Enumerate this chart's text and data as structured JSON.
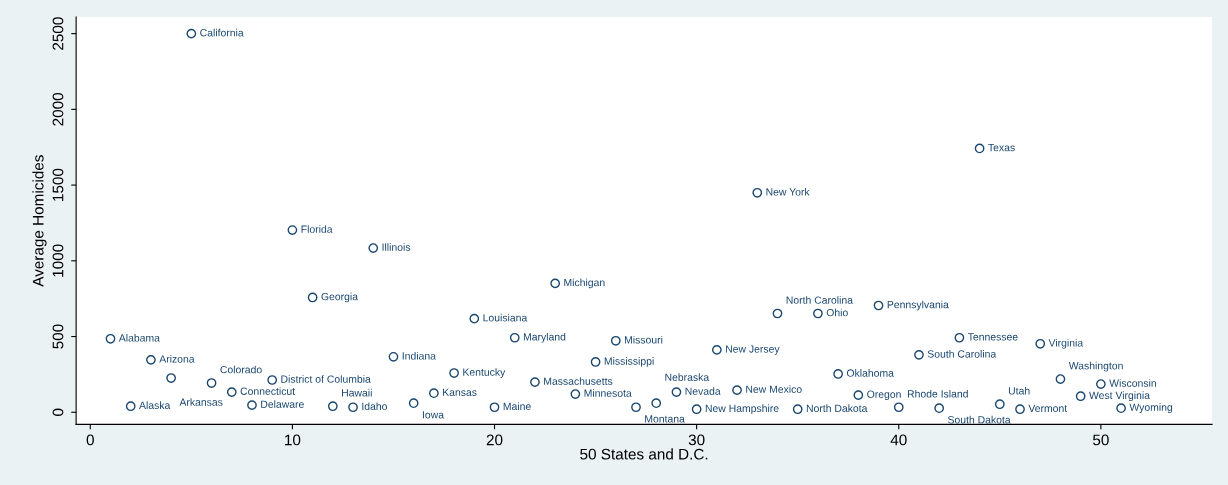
{
  "chart_data": {
    "type": "scatter",
    "xlabel": "50 States and D.C.",
    "ylabel": "Average Homicides",
    "x": [
      1,
      2,
      3,
      4,
      5,
      6,
      7,
      8,
      9,
      10,
      11,
      12,
      13,
      14,
      15,
      16,
      17,
      18,
      19,
      20,
      21,
      22,
      23,
      24,
      25,
      26,
      27,
      28,
      29,
      30,
      31,
      32,
      33,
      34,
      35,
      36,
      37,
      38,
      39,
      40,
      41,
      42,
      43,
      44,
      45,
      46,
      47,
      48,
      49,
      50,
      51
    ],
    "series": [
      {
        "color": "#1a476f",
        "values": [
          485,
          40,
          346,
          226,
          2500,
          193,
          133,
          47,
          213,
          1203,
          758,
          40,
          33,
          1084,
          366,
          60,
          126,
          259,
          618,
          33,
          492,
          199,
          851,
          120,
          332,
          472,
          33,
          60,
          133,
          20,
          412,
          146,
          1449,
          652,
          20,
          652,
          253,
          113,
          705,
          33,
          379,
          27,
          492,
          1742,
          53,
          20,
          452,
          219,
          106,
          186,
          27
        ]
      }
    ],
    "marker": "circle",
    "xlim": [
      -0.7,
      55.5
    ],
    "ylim": [
      -80,
      2610
    ],
    "xticks": [
      0,
      10,
      20,
      30,
      40,
      50
    ],
    "yticks": [
      0,
      500,
      1000,
      1500,
      2000,
      2500
    ],
    "grid": false,
    "legend": false,
    "annotations": [
      {
        "text": "Alabama",
        "x": 1,
        "y": 485
      },
      {
        "text": "Alaska",
        "x": 2,
        "y": 40
      },
      {
        "text": "Arizona",
        "x": 3,
        "y": 346
      },
      {
        "text": "Arkansas",
        "x": 4,
        "y": 226
      },
      {
        "text": "California",
        "x": 5,
        "y": 2500
      },
      {
        "text": "Colorado",
        "x": 6,
        "y": 193
      },
      {
        "text": "Connecticut",
        "x": 7,
        "y": 133
      },
      {
        "text": "Delaware",
        "x": 8,
        "y": 47
      },
      {
        "text": "District of Columbia",
        "x": 9,
        "y": 213
      },
      {
        "text": "Florida",
        "x": 10,
        "y": 1203
      },
      {
        "text": "Georgia",
        "x": 11,
        "y": 758
      },
      {
        "text": "Hawaii",
        "x": 12,
        "y": 40
      },
      {
        "text": "Idaho",
        "x": 13,
        "y": 33
      },
      {
        "text": "Illinois",
        "x": 14,
        "y": 1084
      },
      {
        "text": "Indiana",
        "x": 15,
        "y": 366
      },
      {
        "text": "Iowa",
        "x": 16,
        "y": 60
      },
      {
        "text": "Kansas",
        "x": 17,
        "y": 126
      },
      {
        "text": "Kentucky",
        "x": 18,
        "y": 259
      },
      {
        "text": "Louisiana",
        "x": 19,
        "y": 618
      },
      {
        "text": "Maine",
        "x": 20,
        "y": 33
      },
      {
        "text": "Maryland",
        "x": 21,
        "y": 492
      },
      {
        "text": "Massachusetts",
        "x": 22,
        "y": 199
      },
      {
        "text": "Michigan",
        "x": 23,
        "y": 851
      },
      {
        "text": "Minnesota",
        "x": 24,
        "y": 120
      },
      {
        "text": "Mississippi",
        "x": 25,
        "y": 332
      },
      {
        "text": "Missouri",
        "x": 26,
        "y": 472
      },
      {
        "text": "Montana",
        "x": 27,
        "y": 33
      },
      {
        "text": "Nebraska",
        "x": 28,
        "y": 60
      },
      {
        "text": "Nevada",
        "x": 29,
        "y": 133
      },
      {
        "text": "New Hampshire",
        "x": 30,
        "y": 20
      },
      {
        "text": "New Jersey",
        "x": 31,
        "y": 412
      },
      {
        "text": "New Mexico",
        "x": 32,
        "y": 146
      },
      {
        "text": "New York",
        "x": 33,
        "y": 1449
      },
      {
        "text": "North Carolina",
        "x": 34,
        "y": 652
      },
      {
        "text": "North Dakota",
        "x": 35,
        "y": 20
      },
      {
        "text": "Ohio",
        "x": 36,
        "y": 652
      },
      {
        "text": "Oklahoma",
        "x": 37,
        "y": 253
      },
      {
        "text": "Oregon",
        "x": 38,
        "y": 113
      },
      {
        "text": "Pennsylvania",
        "x": 39,
        "y": 705
      },
      {
        "text": "Rhode Island",
        "x": 40,
        "y": 33
      },
      {
        "text": "South Carolina",
        "x": 41,
        "y": 379
      },
      {
        "text": "South Dakota",
        "x": 42,
        "y": 27
      },
      {
        "text": "Tennessee",
        "x": 43,
        "y": 492
      },
      {
        "text": "Texas",
        "x": 44,
        "y": 1742
      },
      {
        "text": "Utah",
        "x": 45,
        "y": 53
      },
      {
        "text": "Vermont",
        "x": 46,
        "y": 20
      },
      {
        "text": "Virginia",
        "x": 47,
        "y": 452
      },
      {
        "text": "Washington",
        "x": 48,
        "y": 219
      },
      {
        "text": "West Virginia",
        "x": 49,
        "y": 106
      },
      {
        "text": "Wisconsin",
        "x": 50,
        "y": 186
      },
      {
        "text": "Wyoming",
        "x": 51,
        "y": 27
      }
    ]
  }
}
